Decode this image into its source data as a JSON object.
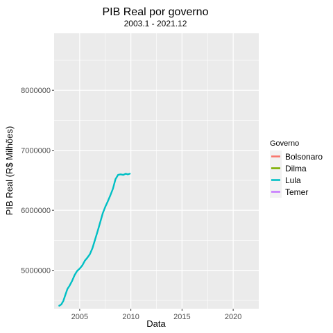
{
  "chart_data": {
    "type": "line",
    "title": "PIB Real por governo",
    "subtitle": "2003.1 - 2021.12",
    "xlabel": "Data",
    "ylabel": "PIB Real (R$ Milhões)",
    "xlim": [
      2002.5,
      2022.5
    ],
    "ylim": [
      4360000,
      8950000
    ],
    "x_ticks": [
      2005,
      2010,
      2015,
      2020
    ],
    "x_tick_labels": [
      "2005",
      "2010",
      "2015",
      "2020"
    ],
    "y_ticks": [
      5000000,
      6000000,
      7000000,
      8000000
    ],
    "y_tick_labels": [
      "5000000",
      "6000000",
      "7000000",
      "8000000"
    ],
    "grid": true,
    "panel_background": "#ebebeb",
    "legend": {
      "title": "Governo",
      "position": "right",
      "entries": [
        {
          "label": "Bolsonaro",
          "color": "#f8766d"
        },
        {
          "label": "Dilma",
          "color": "#7cae00"
        },
        {
          "label": "Lula",
          "color": "#00bfc4"
        },
        {
          "label": "Temer",
          "color": "#c77cff"
        }
      ]
    },
    "series": [
      {
        "name": "Lula",
        "color": "#00bfc4",
        "x": [
          2003.0,
          2003.2,
          2003.4,
          2003.6,
          2003.8,
          2004.0,
          2004.25,
          2004.5,
          2004.75,
          2005.0,
          2005.25,
          2005.5,
          2005.75,
          2006.0,
          2006.25,
          2006.5,
          2006.75,
          2007.0,
          2007.25,
          2007.5,
          2007.75,
          2008.0,
          2008.25,
          2008.5,
          2008.75,
          2009.0,
          2009.25,
          2009.5,
          2009.7,
          2009.9
        ],
        "y": [
          4410000,
          4430000,
          4490000,
          4590000,
          4690000,
          4740000,
          4820000,
          4920000,
          4990000,
          5030000,
          5080000,
          5160000,
          5210000,
          5270000,
          5370000,
          5510000,
          5650000,
          5800000,
          5950000,
          6060000,
          6150000,
          6250000,
          6360000,
          6520000,
          6590000,
          6600000,
          6590000,
          6610000,
          6600000,
          6610000
        ]
      },
      {
        "name": "Dilma",
        "color": "#7cae00",
        "x": [],
        "y": []
      },
      {
        "name": "Temer",
        "color": "#c77cff",
        "x": [],
        "y": []
      },
      {
        "name": "Bolsonaro",
        "color": "#f8766d",
        "x": [],
        "y": []
      }
    ]
  }
}
